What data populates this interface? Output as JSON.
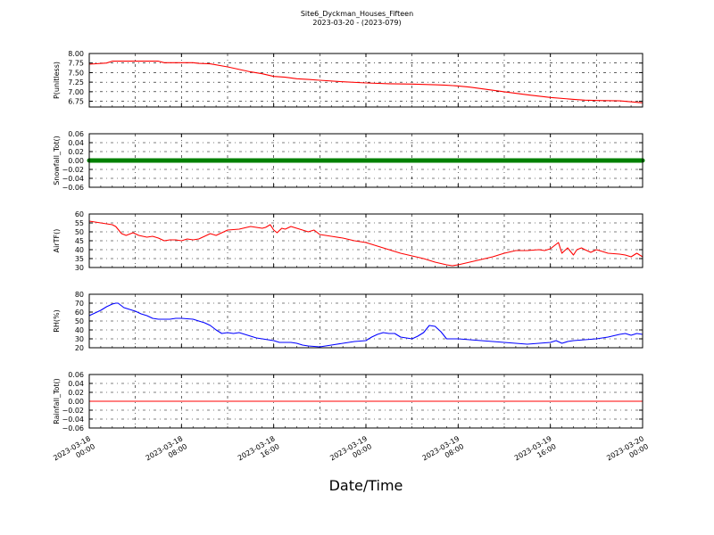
{
  "chart_data": {
    "type": "line",
    "title": "Site6_Dyckman_Houses_Fifteen",
    "subtitle": "2023-03-20 - (2023-079)",
    "xlabel": "Date/Time",
    "x_ticks": [
      "2023-03-18\n00:00",
      "2023-03-18\n08:00",
      "2023-03-18\n16:00",
      "2023-03-19\n00:00",
      "2023-03-19\n08:00",
      "2023-03-19\n16:00",
      "2023-03-20\n00:00"
    ],
    "x_range_hours": [
      0,
      48
    ],
    "grid": true,
    "panels": [
      {
        "ylabel": "P(unitless)",
        "ylim": [
          6.6,
          8.0
        ],
        "yticks": [
          "6.75",
          "7.00",
          "7.25",
          "7.50",
          "7.75",
          "8.00"
        ],
        "ytick_values": [
          6.75,
          7.0,
          7.25,
          7.5,
          7.75,
          8.0
        ],
        "series": [
          {
            "color": "#ff0000",
            "x_hours": [
              0,
              1.5,
              2,
              6,
              6.5,
              9,
              9.5,
              10.5,
              12,
              14,
              15,
              16,
              17,
              18,
              19,
              20,
              22,
              24,
              26,
              28,
              30,
              31,
              32,
              33,
              34,
              36,
              38,
              40,
              42,
              43,
              44,
              46,
              48
            ],
            "values": [
              7.72,
              7.75,
              7.8,
              7.8,
              7.76,
              7.76,
              7.74,
              7.73,
              7.65,
              7.52,
              7.47,
              7.4,
              7.38,
              7.34,
              7.32,
              7.3,
              7.26,
              7.23,
              7.21,
              7.2,
              7.18,
              7.17,
              7.15,
              7.12,
              7.08,
              7.0,
              6.92,
              6.85,
              6.8,
              6.78,
              6.77,
              6.76,
              6.71
            ]
          }
        ]
      },
      {
        "ylabel": "Snowfall_Tot()",
        "ylim": [
          -0.06,
          0.06
        ],
        "yticks": [
          "−0.06",
          "−0.04",
          "−0.02",
          "0.00",
          "0.02",
          "0.04",
          "0.06"
        ],
        "ytick_values": [
          -0.06,
          -0.04,
          -0.02,
          0.0,
          0.02,
          0.04,
          0.06
        ],
        "series": [
          {
            "color": "#008000",
            "style": "markers",
            "x_hours": [
              0,
              48
            ],
            "values": [
              0,
              0
            ]
          }
        ]
      },
      {
        "ylabel": "AirTF()",
        "ylim": [
          30,
          60
        ],
        "yticks": [
          "30",
          "35",
          "40",
          "45",
          "50",
          "55",
          "60"
        ],
        "ytick_values": [
          30,
          35,
          40,
          45,
          50,
          55,
          60
        ],
        "series": [
          {
            "color": "#ff0000",
            "x_hours": [
              0,
              1,
              2,
              2.3,
              2.8,
              3.2,
              3.8,
              4.3,
              5,
              5.5,
              6,
              6.5,
              7,
              7.5,
              8,
              8.5,
              9,
              9.5,
              10,
              10.5,
              11,
              12,
              13,
              14,
              15,
              15.3,
              15.7,
              16,
              16.3,
              16.7,
              17,
              17.5,
              18,
              18.5,
              19,
              19.5,
              20,
              21,
              22,
              23,
              24,
              25,
              26,
              27,
              28,
              29,
              30,
              31,
              31.5,
              32,
              33,
              34,
              35,
              36,
              37,
              38,
              39,
              39.5,
              40,
              40.3,
              40.7,
              41,
              41.5,
              42,
              42.3,
              42.7,
              43,
              43.5,
              44,
              45,
              46,
              46.5,
              47,
              47.5,
              48
            ],
            "values": [
              56,
              55,
              54,
              53,
              49,
              48,
              49.5,
              48,
              47,
              47.5,
              46.5,
              45,
              45.5,
              45.5,
              45,
              46,
              45.5,
              46,
              47.5,
              49,
              48,
              51,
              51.5,
              53,
              52,
              52.5,
              54,
              51,
              49.5,
              52,
              51.5,
              53,
              52,
              51,
              50,
              51,
              48.5,
              47.5,
              46.5,
              45,
              44,
              42,
              40,
              38,
              36.5,
              35,
              33,
              31.5,
              31,
              31.5,
              33,
              34.5,
              36,
              38,
              39.5,
              39.5,
              40,
              39.5,
              40.5,
              42,
              44,
              38,
              41,
              37,
              40,
              41,
              40,
              38.5,
              40,
              38,
              37.5,
              37,
              36,
              38,
              36
            ]
          }
        ]
      },
      {
        "ylabel": "RH(%)",
        "ylim": [
          20,
          80
        ],
        "yticks": [
          "20",
          "30",
          "40",
          "50",
          "60",
          "70",
          "80"
        ],
        "ytick_values": [
          20,
          30,
          40,
          50,
          60,
          70,
          80
        ],
        "series": [
          {
            "color": "#0000ff",
            "x_hours": [
              0,
              1,
              1.5,
              2,
              2.3,
              2.5,
              3,
              3.5,
              4,
              4.5,
              5,
              5.5,
              6,
              7,
              7.5,
              8,
              9,
              9.5,
              10,
              10.5,
              11,
              11.5,
              12,
              12.5,
              13,
              14,
              14.5,
              15,
              16,
              16.5,
              17,
              17.5,
              18,
              18.5,
              19,
              20,
              21,
              22,
              23,
              24,
              24.5,
              25,
              25.5,
              26,
              26.5,
              27,
              28,
              28.5,
              29,
              29.5,
              30,
              30.5,
              31,
              32,
              33,
              34,
              35,
              36,
              37,
              38,
              39,
              40,
              40.5,
              41,
              41.5,
              42,
              43,
              44,
              45,
              46,
              46.5,
              47,
              47.5,
              48
            ],
            "values": [
              56,
              62,
              66,
              69,
              70,
              70,
              65,
              63,
              61,
              58,
              56,
              53,
              52,
              52,
              53,
              53,
              52,
              50,
              48,
              45,
              40,
              36,
              37,
              36,
              37,
              33,
              31,
              30,
              28,
              26,
              26,
              26,
              25,
              23,
              22,
              21,
              23,
              25,
              27,
              28,
              32,
              35,
              37,
              36,
              36,
              32,
              30,
              33,
              37,
              45,
              44,
              38,
              30,
              30,
              29,
              28,
              27,
              26,
              25,
              24,
              25,
              26,
              28,
              25,
              27,
              28,
              29,
              30,
              32,
              35,
              36,
              34,
              36,
              35
            ]
          }
        ]
      },
      {
        "ylabel": "Rainfall_Tot()",
        "ylim": [
          -0.06,
          0.06
        ],
        "yticks": [
          "−0.06",
          "−0.04",
          "−0.02",
          "0.00",
          "0.02",
          "0.04",
          "0.06"
        ],
        "ytick_values": [
          -0.06,
          -0.04,
          -0.02,
          0.0,
          0.02,
          0.04,
          0.06
        ],
        "series": [
          {
            "color": "#ff0000",
            "x_hours": [
              0,
              48
            ],
            "values": [
              0,
              0
            ]
          }
        ]
      }
    ]
  }
}
